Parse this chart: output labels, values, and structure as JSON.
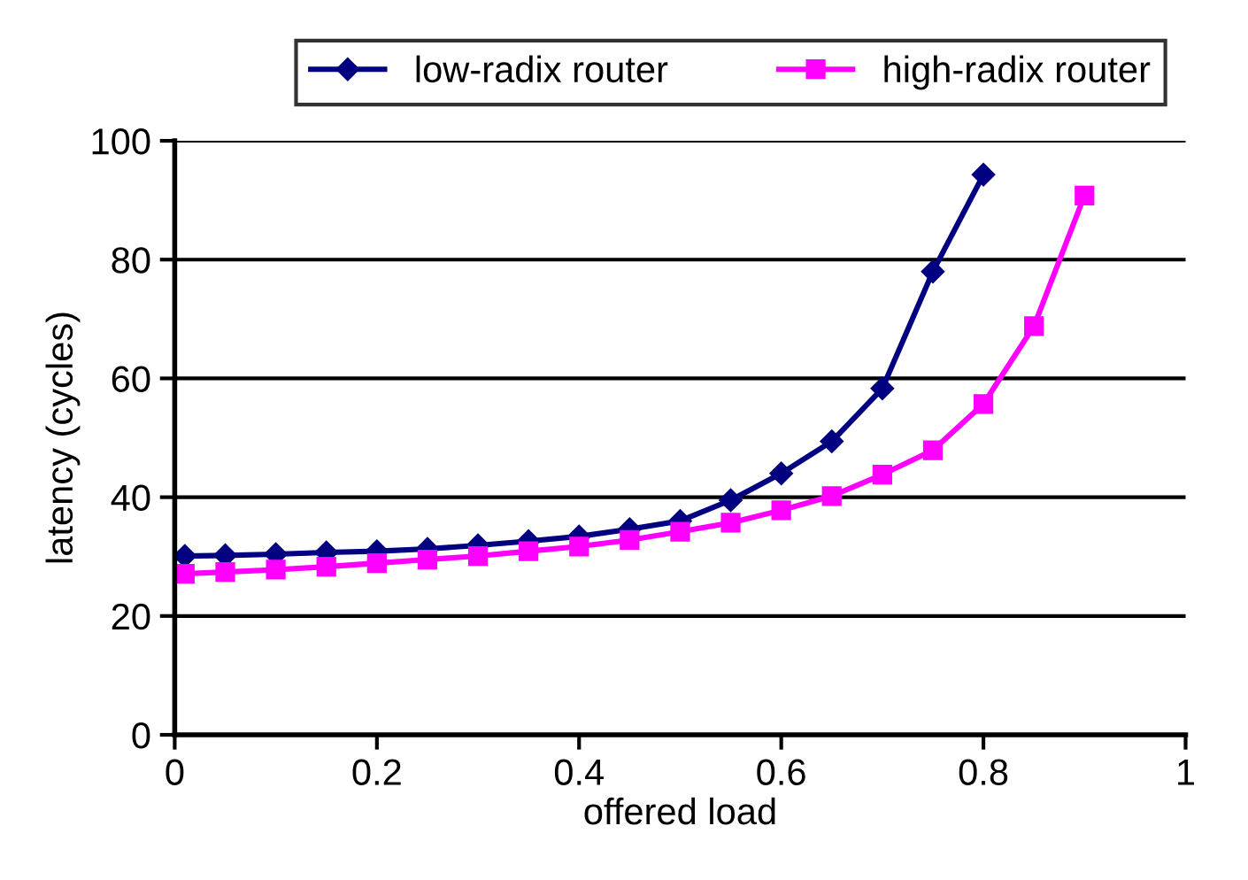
{
  "chart_data": {
    "type": "line",
    "xlabel": "offered load",
    "ylabel": "latency (cycles)",
    "xlim": [
      0,
      1
    ],
    "xticks": [
      0,
      0.2,
      0.4,
      0.6,
      0.8,
      1
    ],
    "ylim": [
      0,
      100
    ],
    "yticks": [
      0,
      20,
      40,
      60,
      80,
      100
    ],
    "grid": "y",
    "legend": "top",
    "line_style": "solid",
    "series": [
      {
        "name": "low-radix router",
        "color": "#000080",
        "marker": "diamond",
        "x": [
          0.01,
          0.05,
          0.1,
          0.15,
          0.2,
          0.25,
          0.3,
          0.35,
          0.4,
          0.45,
          0.5,
          0.55,
          0.6,
          0.65,
          0.7,
          0.75,
          0.8
        ],
        "values": [
          30.1,
          30.2,
          30.4,
          30.7,
          30.9,
          31.3,
          31.9,
          32.6,
          33.4,
          34.6,
          36,
          39.5,
          44,
          49.4,
          58.3,
          78,
          94.3
        ]
      },
      {
        "name": "high-radix router",
        "color": "#ff00ff",
        "marker": "square",
        "x": [
          0.01,
          0.05,
          0.1,
          0.15,
          0.2,
          0.25,
          0.3,
          0.35,
          0.4,
          0.45,
          0.5,
          0.55,
          0.6,
          0.65,
          0.7,
          0.75,
          0.8,
          0.85,
          0.9
        ],
        "values": [
          27.1,
          27.4,
          27.8,
          28.3,
          28.9,
          29.5,
          30.1,
          30.9,
          31.7,
          32.8,
          34.2,
          35.7,
          37.8,
          40.2,
          43.8,
          47.9,
          55.7,
          68.8,
          90.8
        ]
      }
    ]
  }
}
